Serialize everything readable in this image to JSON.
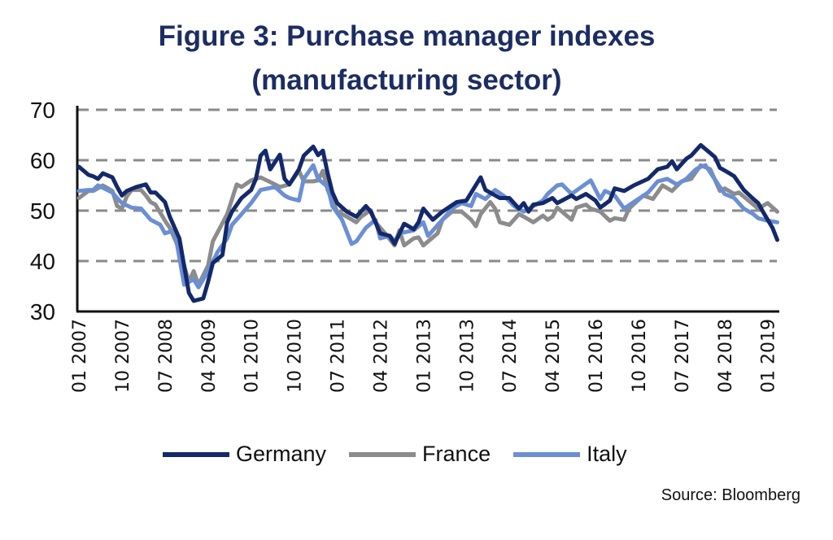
{
  "chart_data": {
    "type": "line",
    "title": "Figure 3: Purchase manager indexes",
    "subtitle": "(manufacturing sector)",
    "source": "Source: Bloomberg",
    "xlabel": "",
    "ylabel": "",
    "ylim": [
      30,
      70
    ],
    "yticks": [
      30,
      40,
      50,
      60,
      70
    ],
    "xlim": [
      "2007-01",
      "2019-03"
    ],
    "xtick_labels": [
      "01 2007",
      "10 2007",
      "07 2008",
      "04 2009",
      "01 2010",
      "10 2010",
      "07 2011",
      "04 2012",
      "01 2013",
      "10 2013",
      "07 2014",
      "04 2015",
      "01 2016",
      "10 2016",
      "07 2017",
      "04 2018",
      "01 2019"
    ],
    "xtick_dates": [
      "2007-01",
      "2007-10",
      "2008-07",
      "2009-04",
      "2010-01",
      "2010-10",
      "2011-07",
      "2012-04",
      "2013-01",
      "2013-10",
      "2014-07",
      "2015-04",
      "2016-01",
      "2016-10",
      "2017-07",
      "2018-04",
      "2019-01"
    ],
    "grid": "horizontal dashed",
    "legend": "bottom",
    "series": [
      {
        "name": "Germany",
        "color": "#13296b",
        "points": [
          [
            "2007-01",
            58.7
          ],
          [
            "2007-03",
            57.1
          ],
          [
            "2007-04",
            56.8
          ],
          [
            "2007-05",
            56.3
          ],
          [
            "2007-06",
            57.4
          ],
          [
            "2007-08",
            56.6
          ],
          [
            "2007-09",
            54.7
          ],
          [
            "2007-10",
            53.0
          ],
          [
            "2007-11",
            53.9
          ],
          [
            "2008-01",
            54.7
          ],
          [
            "2008-03",
            55.2
          ],
          [
            "2008-04",
            53.6
          ],
          [
            "2008-05",
            53.6
          ],
          [
            "2008-07",
            51.7
          ],
          [
            "2008-08",
            48.8
          ],
          [
            "2008-10",
            44.5
          ],
          [
            "2008-11",
            39.0
          ],
          [
            "2008-12",
            33.7
          ],
          [
            "2009-01",
            32.1
          ],
          [
            "2009-03",
            32.6
          ],
          [
            "2009-04",
            35.9
          ],
          [
            "2009-05",
            39.6
          ],
          [
            "2009-07",
            41.2
          ],
          [
            "2009-08",
            47.7
          ],
          [
            "2009-09",
            49.8
          ],
          [
            "2009-11",
            52.5
          ],
          [
            "2010-01",
            54.1
          ],
          [
            "2010-02",
            56.3
          ],
          [
            "2010-03",
            60.9
          ],
          [
            "2010-04",
            61.9
          ],
          [
            "2010-05",
            58.2
          ],
          [
            "2010-07",
            61.1
          ],
          [
            "2010-08",
            56.3
          ],
          [
            "2010-09",
            55.2
          ],
          [
            "2010-11",
            58.2
          ],
          [
            "2010-12",
            60.9
          ],
          [
            "2011-02",
            62.7
          ],
          [
            "2011-03",
            61.0
          ],
          [
            "2011-04",
            61.9
          ],
          [
            "2011-05",
            57.4
          ],
          [
            "2011-06",
            53.6
          ],
          [
            "2011-07",
            51.5
          ],
          [
            "2011-09",
            49.8
          ],
          [
            "2011-11",
            48.8
          ],
          [
            "2012-01",
            50.9
          ],
          [
            "2012-02",
            49.8
          ],
          [
            "2012-03",
            47.7
          ],
          [
            "2012-04",
            45.5
          ],
          [
            "2012-06",
            45.0
          ],
          [
            "2012-07",
            43.4
          ],
          [
            "2012-09",
            47.4
          ],
          [
            "2012-11",
            46.3
          ],
          [
            "2012-12",
            47.7
          ],
          [
            "2013-01",
            50.4
          ],
          [
            "2013-03",
            48.2
          ],
          [
            "2013-05",
            49.8
          ],
          [
            "2013-08",
            51.7
          ],
          [
            "2013-10",
            52.0
          ],
          [
            "2014-01",
            56.6
          ],
          [
            "2014-02",
            54.1
          ],
          [
            "2014-05",
            52.5
          ],
          [
            "2014-07",
            52.5
          ],
          [
            "2014-09",
            50.4
          ],
          [
            "2014-10",
            51.5
          ],
          [
            "2014-11",
            49.8
          ],
          [
            "2014-12",
            51.2
          ],
          [
            "2015-02",
            51.5
          ],
          [
            "2015-04",
            52.5
          ],
          [
            "2015-05",
            51.5
          ],
          [
            "2015-06",
            52.0
          ],
          [
            "2015-08",
            53.0
          ],
          [
            "2015-09",
            52.3
          ],
          [
            "2015-11",
            53.3
          ],
          [
            "2016-01",
            52.0
          ],
          [
            "2016-02",
            50.6
          ],
          [
            "2016-04",
            52.0
          ],
          [
            "2016-05",
            54.4
          ],
          [
            "2016-07",
            53.9
          ],
          [
            "2016-09",
            55.0
          ],
          [
            "2016-12",
            56.3
          ],
          [
            "2017-02",
            58.2
          ],
          [
            "2017-04",
            58.7
          ],
          [
            "2017-05",
            59.8
          ],
          [
            "2017-06",
            58.2
          ],
          [
            "2017-08",
            60.3
          ],
          [
            "2017-09",
            60.9
          ],
          [
            "2017-11",
            63.0
          ],
          [
            "2018-01",
            61.4
          ],
          [
            "2018-02",
            60.6
          ],
          [
            "2018-03",
            58.5
          ],
          [
            "2018-05",
            57.4
          ],
          [
            "2018-06",
            56.8
          ],
          [
            "2018-08",
            54.1
          ],
          [
            "2018-10",
            52.3
          ],
          [
            "2018-11",
            51.5
          ],
          [
            "2018-12",
            49.8
          ],
          [
            "2019-02",
            46.6
          ],
          [
            "2019-03",
            44.2
          ]
        ]
      },
      {
        "name": "France",
        "color": "#8c8c8c",
        "points": [
          [
            "2007-01",
            52.5
          ],
          [
            "2007-03",
            53.9
          ],
          [
            "2007-04",
            53.9
          ],
          [
            "2007-06",
            55.0
          ],
          [
            "2007-08",
            53.9
          ],
          [
            "2007-09",
            50.9
          ],
          [
            "2007-10",
            50.4
          ],
          [
            "2007-11",
            52.8
          ],
          [
            "2007-12",
            54.1
          ],
          [
            "2008-02",
            54.1
          ],
          [
            "2008-03",
            53.0
          ],
          [
            "2008-04",
            51.7
          ],
          [
            "2008-05",
            51.2
          ],
          [
            "2008-07",
            48.0
          ],
          [
            "2008-08",
            46.6
          ],
          [
            "2008-10",
            42.3
          ],
          [
            "2008-12",
            35.9
          ],
          [
            "2009-01",
            38.0
          ],
          [
            "2009-02",
            35.3
          ],
          [
            "2009-04",
            39.1
          ],
          [
            "2009-05",
            43.9
          ],
          [
            "2009-08",
            49.3
          ],
          [
            "2009-10",
            55.2
          ],
          [
            "2009-11",
            54.7
          ],
          [
            "2010-01",
            56.0
          ],
          [
            "2010-03",
            56.6
          ],
          [
            "2010-06",
            55.2
          ],
          [
            "2010-07",
            54.7
          ],
          [
            "2010-09",
            55.2
          ],
          [
            "2010-11",
            57.9
          ],
          [
            "2010-12",
            55.8
          ],
          [
            "2011-02",
            55.8
          ],
          [
            "2011-03",
            56.0
          ],
          [
            "2011-04",
            57.9
          ],
          [
            "2011-05",
            54.1
          ],
          [
            "2011-07",
            49.8
          ],
          [
            "2011-09",
            48.8
          ],
          [
            "2011-11",
            47.7
          ],
          [
            "2011-12",
            48.8
          ],
          [
            "2012-02",
            50.1
          ],
          [
            "2012-03",
            47.7
          ],
          [
            "2012-05",
            45.5
          ],
          [
            "2012-07",
            43.1
          ],
          [
            "2012-08",
            46.1
          ],
          [
            "2012-09",
            43.1
          ],
          [
            "2012-11",
            44.5
          ],
          [
            "2012-12",
            44.7
          ],
          [
            "2013-01",
            43.1
          ],
          [
            "2013-02",
            43.9
          ],
          [
            "2013-04",
            45.5
          ],
          [
            "2013-05",
            48.2
          ],
          [
            "2013-07",
            49.8
          ],
          [
            "2013-09",
            49.8
          ],
          [
            "2013-11",
            48.2
          ],
          [
            "2013-12",
            46.9
          ],
          [
            "2014-01",
            49.3
          ],
          [
            "2014-03",
            51.7
          ],
          [
            "2014-04",
            50.4
          ],
          [
            "2014-05",
            47.7
          ],
          [
            "2014-07",
            47.2
          ],
          [
            "2014-09",
            49.3
          ],
          [
            "2014-10",
            48.8
          ],
          [
            "2014-12",
            47.7
          ],
          [
            "2015-02",
            49.0
          ],
          [
            "2015-03",
            48.2
          ],
          [
            "2015-04",
            48.8
          ],
          [
            "2015-05",
            50.6
          ],
          [
            "2015-08",
            48.2
          ],
          [
            "2015-09",
            50.6
          ],
          [
            "2015-11",
            51.2
          ],
          [
            "2015-12",
            50.4
          ],
          [
            "2016-02",
            49.8
          ],
          [
            "2016-04",
            48.0
          ],
          [
            "2016-05",
            48.5
          ],
          [
            "2016-07",
            48.2
          ],
          [
            "2016-08",
            50.4
          ],
          [
            "2016-11",
            53.0
          ],
          [
            "2017-01",
            52.3
          ],
          [
            "2017-03",
            55.0
          ],
          [
            "2017-05",
            53.9
          ],
          [
            "2017-07",
            55.8
          ],
          [
            "2017-09",
            56.3
          ],
          [
            "2017-11",
            59.0
          ],
          [
            "2018-01",
            58.2
          ],
          [
            "2018-03",
            53.9
          ],
          [
            "2018-04",
            54.4
          ],
          [
            "2018-06",
            53.3
          ],
          [
            "2018-07",
            53.6
          ],
          [
            "2018-10",
            51.2
          ],
          [
            "2018-11",
            50.4
          ],
          [
            "2019-01",
            51.5
          ],
          [
            "2019-03",
            49.8
          ]
        ]
      },
      {
        "name": "Italy",
        "color": "#6b8fd4",
        "points": [
          [
            "2007-01",
            53.9
          ],
          [
            "2007-03",
            54.1
          ],
          [
            "2007-04",
            54.1
          ],
          [
            "2007-05",
            55.0
          ],
          [
            "2007-08",
            53.6
          ],
          [
            "2007-09",
            52.5
          ],
          [
            "2007-10",
            51.5
          ],
          [
            "2007-12",
            50.6
          ],
          [
            "2008-02",
            50.4
          ],
          [
            "2008-04",
            48.2
          ],
          [
            "2008-06",
            47.2
          ],
          [
            "2008-07",
            45.5
          ],
          [
            "2008-09",
            46.1
          ],
          [
            "2008-10",
            40.7
          ],
          [
            "2008-11",
            35.3
          ],
          [
            "2009-01",
            36.4
          ],
          [
            "2009-02",
            34.8
          ],
          [
            "2009-04",
            38.0
          ],
          [
            "2009-06",
            41.8
          ],
          [
            "2009-08",
            44.5
          ],
          [
            "2009-09",
            47.2
          ],
          [
            "2009-11",
            49.3
          ],
          [
            "2010-01",
            51.5
          ],
          [
            "2010-03",
            54.1
          ],
          [
            "2010-06",
            54.7
          ],
          [
            "2010-08",
            53.0
          ],
          [
            "2010-09",
            52.5
          ],
          [
            "2010-11",
            52.0
          ],
          [
            "2010-12",
            56.3
          ],
          [
            "2011-02",
            59.0
          ],
          [
            "2011-03",
            56.3
          ],
          [
            "2011-05",
            54.7
          ],
          [
            "2011-06",
            50.9
          ],
          [
            "2011-08",
            48.2
          ],
          [
            "2011-10",
            43.4
          ],
          [
            "2011-11",
            43.9
          ],
          [
            "2012-01",
            46.6
          ],
          [
            "2012-03",
            48.2
          ],
          [
            "2012-04",
            44.5
          ],
          [
            "2012-06",
            45.0
          ],
          [
            "2012-07",
            43.9
          ],
          [
            "2012-08",
            45.5
          ],
          [
            "2012-11",
            46.1
          ],
          [
            "2013-01",
            47.7
          ],
          [
            "2013-02",
            45.0
          ],
          [
            "2013-05",
            48.2
          ],
          [
            "2013-07",
            50.4
          ],
          [
            "2013-09",
            51.5
          ],
          [
            "2013-11",
            50.9
          ],
          [
            "2013-12",
            53.3
          ],
          [
            "2014-02",
            52.3
          ],
          [
            "2014-04",
            54.1
          ],
          [
            "2014-06",
            52.8
          ],
          [
            "2014-08",
            50.9
          ],
          [
            "2014-10",
            49.8
          ],
          [
            "2014-12",
            50.9
          ],
          [
            "2015-02",
            52.0
          ],
          [
            "2015-03",
            53.3
          ],
          [
            "2015-05",
            55.0
          ],
          [
            "2015-06",
            55.2
          ],
          [
            "2015-08",
            53.3
          ],
          [
            "2015-12",
            56.0
          ],
          [
            "2016-02",
            52.3
          ],
          [
            "2016-03",
            53.9
          ],
          [
            "2016-05",
            53.0
          ],
          [
            "2016-07",
            50.4
          ],
          [
            "2016-09",
            51.7
          ],
          [
            "2016-12",
            53.6
          ],
          [
            "2017-02",
            55.8
          ],
          [
            "2017-04",
            56.3
          ],
          [
            "2017-06",
            55.2
          ],
          [
            "2017-08",
            56.3
          ],
          [
            "2017-10",
            58.2
          ],
          [
            "2017-11",
            58.7
          ],
          [
            "2017-12",
            59.0
          ],
          [
            "2018-03",
            54.7
          ],
          [
            "2018-04",
            53.3
          ],
          [
            "2018-06",
            52.5
          ],
          [
            "2018-08",
            50.4
          ],
          [
            "2018-10",
            49.3
          ],
          [
            "2018-11",
            48.5
          ],
          [
            "2019-01",
            48.0
          ],
          [
            "2019-03",
            47.7
          ]
        ]
      }
    ]
  }
}
